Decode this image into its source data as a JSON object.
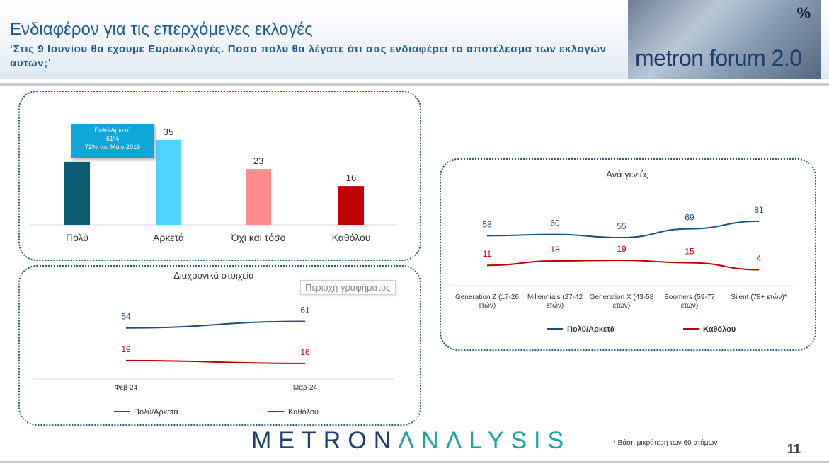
{
  "header": {
    "title": "Ενδιαφέρον για τις επερχόμενες εκλογές",
    "subtitle": "‘Στις 9 Ιουνίου θα έχουμε Ευρωεκλογές. Πόσο πολύ θα λέγατε ότι σας ενδιαφέρει το αποτέλεσμα των εκλογών αυτών;’"
  },
  "logo": {
    "brand": "metron forum 2.0",
    "percent_sign": "%"
  },
  "callout": {
    "line1": "Πολύ/Αρκετά",
    "line2": "61%",
    "line3": "72% τον Μάιο 2019"
  },
  "area_label": "Περιοχή γραφήματος",
  "footer": {
    "logo_part1": "METRON",
    "logo_part2": "ΛNΛLYSIS",
    "footnote": "*  Βάση μικρότερη των 60 ατόμων",
    "page": "11"
  },
  "chart_data": [
    {
      "type": "bar",
      "categories": [
        "Πολύ",
        "Αρκετά",
        "Όχι και τόσο",
        "Καθόλου"
      ],
      "values": [
        26,
        35,
        23,
        16
      ],
      "colors": [
        "#0d5a73",
        "#4dd4ff",
        "#ff8c8c",
        "#c00000"
      ],
      "ylim": [
        0,
        40
      ]
    },
    {
      "type": "line",
      "title": "Διαχρονικά στοιχεία",
      "categories": [
        "Φεβ-24",
        "Μαρ-24"
      ],
      "series": [
        {
          "name": "Πολύ/Αρκετά",
          "values": [
            54,
            61
          ],
          "color": "#1f4e79"
        },
        {
          "name": "Καθόλου",
          "values": [
            19,
            16
          ],
          "color": "#c00000"
        }
      ],
      "ylim": [
        0,
        75
      ],
      "legend": "bottom"
    },
    {
      "type": "line",
      "title": "Ανά γενιές",
      "categories": [
        [
          "Generation Z (17-26",
          "ετών)"
        ],
        [
          "Millennials (27-42",
          "ετών)"
        ],
        [
          "Generation X (43-58",
          "ετών)"
        ],
        [
          "Boomers (59-77",
          "ετών)"
        ],
        [
          "Silent (78+ ετών)*"
        ]
      ],
      "series": [
        {
          "name": "Πολύ/Αρκετά",
          "values": [
            58,
            60,
            55,
            69,
            81
          ],
          "color": "#1f4e79"
        },
        {
          "name": "Καθόλου",
          "values": [
            11,
            18,
            19,
            15,
            4
          ],
          "color": "#c00000"
        }
      ],
      "ylim": [
        0,
        95
      ],
      "legend": "bottom"
    }
  ]
}
